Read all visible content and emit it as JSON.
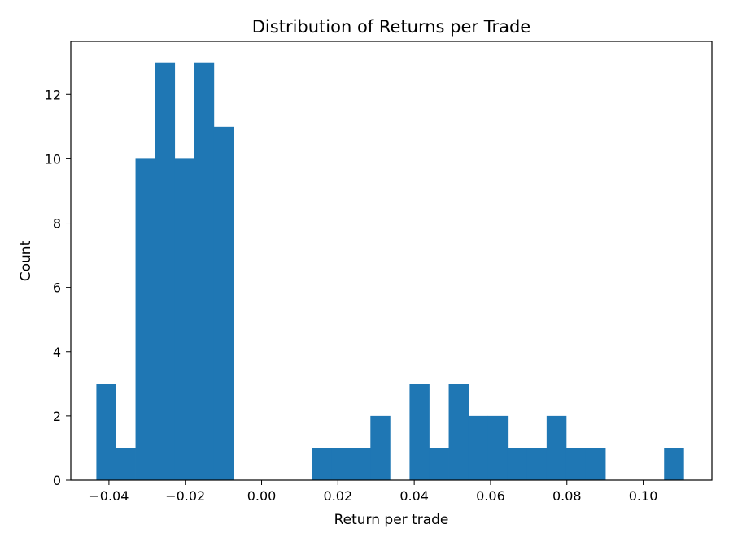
{
  "chart_data": {
    "type": "bar",
    "title": "Distribution of Returns per Trade",
    "xlabel": "Return per trade",
    "ylabel": "Count",
    "bar_color": "#1f77b4",
    "xlim": [
      -0.05,
      0.118
    ],
    "ylim": [
      0,
      13.65
    ],
    "grid": false,
    "x_ticks": [
      {
        "value": -0.04,
        "label": "−0.04"
      },
      {
        "value": -0.02,
        "label": "−0.02"
      },
      {
        "value": 0.0,
        "label": "0.00"
      },
      {
        "value": 0.02,
        "label": "0.02"
      },
      {
        "value": 0.04,
        "label": "0.04"
      },
      {
        "value": 0.06,
        "label": "0.06"
      },
      {
        "value": 0.08,
        "label": "0.08"
      },
      {
        "value": 0.1,
        "label": "0.10"
      }
    ],
    "y_ticks": [
      {
        "value": 0,
        "label": "0"
      },
      {
        "value": 2,
        "label": "2"
      },
      {
        "value": 4,
        "label": "4"
      },
      {
        "value": 6,
        "label": "6"
      },
      {
        "value": 8,
        "label": "8"
      },
      {
        "value": 10,
        "label": "10"
      },
      {
        "value": 12,
        "label": "12"
      }
    ],
    "bin_start": -0.0433,
    "bin_width": 0.00513,
    "counts": [
      3,
      1,
      10,
      13,
      10,
      13,
      11,
      0,
      0,
      0,
      0,
      1,
      1,
      1,
      2,
      0,
      3,
      1,
      3,
      2,
      2,
      1,
      1,
      2,
      1,
      1,
      0,
      0,
      0,
      1
    ]
  }
}
